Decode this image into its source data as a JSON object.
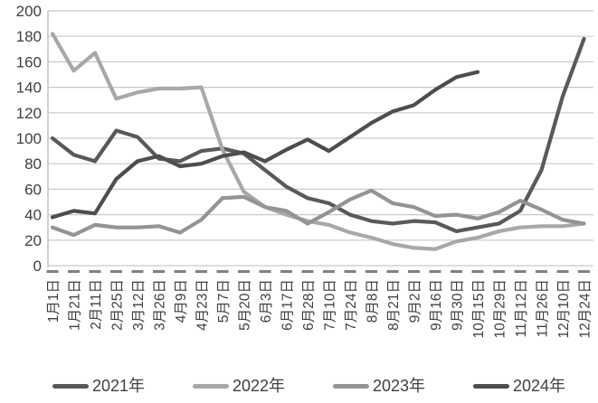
{
  "chart_data": {
    "type": "line",
    "title": "",
    "xlabel": "",
    "ylabel": "",
    "ylim": [
      0,
      200
    ],
    "ytick_step": 20,
    "grid": true,
    "legend_position": "bottom",
    "x": [
      "1月1日",
      "1月21日",
      "2月11日",
      "2月25日",
      "3月12日",
      "3月26日",
      "4月9日",
      "4月23日",
      "5月7日",
      "5月20日",
      "6月3日",
      "6月17日",
      "6月28日",
      "7月10日",
      "7月24日",
      "8月8日",
      "8月21日",
      "9月2日",
      "9月16日",
      "9月30日",
      "10月15日",
      "10月29日",
      "11月12日",
      "11月26日",
      "12月10日",
      "12月24日"
    ],
    "series": [
      {
        "name": "2021年",
        "color": "#595959",
        "values": [
          100,
          87,
          82,
          106,
          101,
          84,
          82,
          90,
          92,
          88,
          75,
          62,
          53,
          49,
          40,
          35,
          33,
          35,
          34,
          27,
          30,
          33,
          43,
          75,
          133,
          178
        ]
      },
      {
        "name": "2022年",
        "color": "#a8a8a8",
        "values": [
          182,
          153,
          167,
          131,
          136,
          139,
          139,
          140,
          91,
          58,
          46,
          40,
          35,
          32,
          26,
          22,
          17,
          14,
          13,
          19,
          22,
          27,
          30,
          31,
          31,
          33
        ]
      },
      {
        "name": "2023年",
        "color": "#949494",
        "values": [
          30,
          24,
          32,
          30,
          30,
          31,
          26,
          36,
          53,
          54,
          46,
          43,
          33,
          42,
          52,
          59,
          49,
          46,
          39,
          40,
          37,
          42,
          51,
          44,
          36,
          33
        ]
      },
      {
        "name": "2024年",
        "color": "#4d4d4d",
        "values": [
          38,
          43,
          41,
          68,
          82,
          86,
          78,
          80,
          86,
          89,
          82,
          91,
          99,
          90,
          101,
          112,
          121,
          126,
          138,
          148,
          152,
          null,
          null,
          null,
          null,
          null
        ]
      }
    ],
    "axis_color": "#bfbfbf",
    "grid_color": "#c9c9c9",
    "tick_dash_color": "#808080",
    "label_color": "#3f3f3f"
  },
  "legend": {
    "items": [
      {
        "label": "2021年"
      },
      {
        "label": "2022年"
      },
      {
        "label": "2023年"
      },
      {
        "label": "2024年"
      }
    ]
  }
}
